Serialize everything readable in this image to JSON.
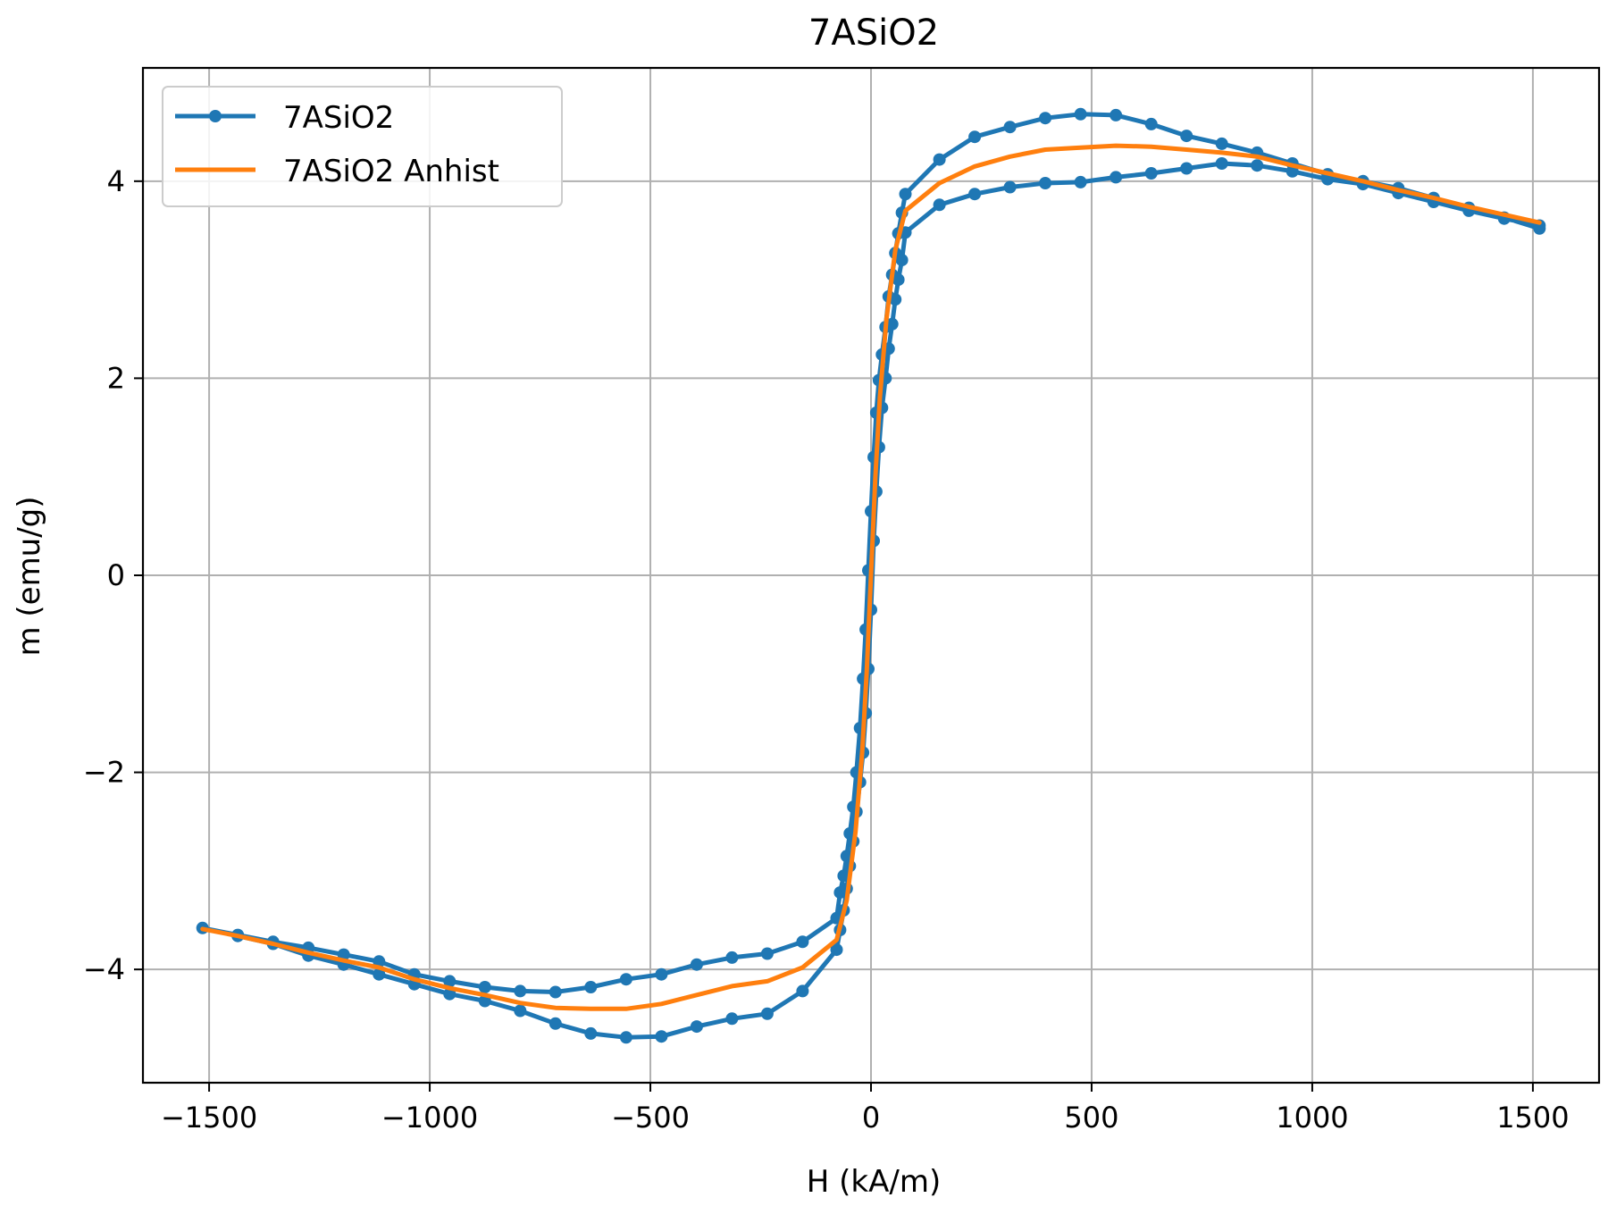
{
  "chart_data": {
    "type": "line",
    "title": "7ASiO2",
    "xlabel": "H (kA/m)",
    "ylabel": "m (emu/g)",
    "xlim": [
      -1650,
      1650
    ],
    "ylim": [
      -5.15,
      5.15
    ],
    "xticks": [
      -1500,
      -1000,
      -500,
      0,
      500,
      1000,
      1500
    ],
    "xtick_labels": [
      "−1500",
      "−1000",
      "−500",
      "0",
      "500",
      "1000",
      "1500"
    ],
    "yticks": [
      -4,
      -2,
      0,
      2,
      4
    ],
    "ytick_labels": [
      "−4",
      "−2",
      "0",
      "2",
      "4"
    ],
    "grid": true,
    "legend_position": "top-left",
    "series": [
      {
        "name": "7ASiO2",
        "color": "#1f77b4",
        "marker": "circle",
        "x": [
          1515,
          1435,
          1355,
          1275,
          1195,
          1115,
          1035,
          955,
          875,
          795,
          715,
          635,
          555,
          475,
          395,
          315,
          235,
          155,
          78,
          70,
          62,
          55,
          48,
          40,
          33,
          25,
          18,
          12,
          6,
          0,
          -6,
          -12,
          -18,
          -25,
          -33,
          -40,
          -48,
          -55,
          -62,
          -70,
          -78,
          -155,
          -235,
          -315,
          -395,
          -475,
          -555,
          -635,
          -715,
          -795,
          -875,
          -955,
          -1035,
          -1115,
          -1195,
          -1275,
          -1355,
          -1435,
          -1515,
          -1435,
          -1355,
          -1275,
          -1195,
          -1115,
          -1035,
          -955,
          -875,
          -795,
          -715,
          -635,
          -555,
          -475,
          -395,
          -315,
          -235,
          -155,
          -78,
          -70,
          -62,
          -55,
          -48,
          -40,
          -33,
          -25,
          -18,
          -12,
          -6,
          0,
          6,
          12,
          18,
          25,
          33,
          40,
          48,
          55,
          62,
          70,
          78,
          155,
          235,
          315,
          395,
          475,
          555,
          635,
          715,
          795,
          875,
          955,
          1035,
          1115,
          1195,
          1275,
          1355,
          1435,
          1515
        ],
        "y": [
          3.52,
          3.63,
          3.73,
          3.83,
          3.93,
          4.0,
          4.07,
          4.18,
          4.29,
          4.38,
          4.46,
          4.58,
          4.67,
          4.68,
          4.64,
          4.55,
          4.45,
          4.22,
          3.87,
          3.68,
          3.47,
          3.27,
          3.05,
          2.83,
          2.52,
          2.24,
          1.98,
          1.65,
          1.2,
          0.65,
          0.05,
          -0.55,
          -1.05,
          -1.55,
          -2.0,
          -2.35,
          -2.62,
          -2.85,
          -3.05,
          -3.22,
          -3.48,
          -3.72,
          -3.84,
          -3.88,
          -3.95,
          -4.05,
          -4.1,
          -4.18,
          -4.23,
          -4.22,
          -4.18,
          -4.12,
          -4.05,
          -3.92,
          -3.85,
          -3.78,
          -3.72,
          -3.65,
          -3.58,
          -3.66,
          -3.74,
          -3.86,
          -3.95,
          -4.05,
          -4.15,
          -4.25,
          -4.32,
          -4.42,
          -4.55,
          -4.65,
          -4.69,
          -4.68,
          -4.58,
          -4.5,
          -4.45,
          -4.22,
          -3.8,
          -3.6,
          -3.4,
          -3.18,
          -2.95,
          -2.7,
          -2.4,
          -2.1,
          -1.8,
          -1.4,
          -0.95,
          -0.35,
          0.35,
          0.85,
          1.3,
          1.7,
          2.0,
          2.3,
          2.55,
          2.8,
          3.0,
          3.2,
          3.48,
          3.76,
          3.87,
          3.94,
          3.98,
          3.99,
          4.04,
          4.08,
          4.13,
          4.18,
          4.16,
          4.1,
          4.02,
          3.97,
          3.88,
          3.79,
          3.7,
          3.62,
          3.55
        ]
      },
      {
        "name": "7ASiO2 Anhist",
        "color": "#ff7f0e",
        "marker": "none",
        "x": [
          -1515,
          -1435,
          -1355,
          -1275,
          -1195,
          -1115,
          -1035,
          -955,
          -875,
          -795,
          -715,
          -635,
          -555,
          -475,
          -395,
          -315,
          -235,
          -155,
          -78,
          -55,
          -35,
          -20,
          -10,
          0,
          10,
          20,
          35,
          55,
          78,
          155,
          235,
          315,
          395,
          475,
          555,
          635,
          715,
          795,
          875,
          955,
          1035,
          1115,
          1195,
          1275,
          1355,
          1435,
          1515
        ],
        "y": [
          -3.59,
          -3.66,
          -3.74,
          -3.83,
          -3.91,
          -3.98,
          -4.1,
          -4.19,
          -4.26,
          -4.34,
          -4.39,
          -4.4,
          -4.4,
          -4.35,
          -4.26,
          -4.17,
          -4.12,
          -3.98,
          -3.7,
          -3.3,
          -2.6,
          -1.8,
          -1.0,
          0.0,
          1.0,
          1.8,
          2.6,
          3.3,
          3.7,
          3.98,
          4.15,
          4.25,
          4.32,
          4.34,
          4.36,
          4.35,
          4.32,
          4.29,
          4.25,
          4.16,
          4.08,
          4.0,
          3.91,
          3.83,
          3.74,
          3.66,
          3.58
        ]
      }
    ]
  }
}
